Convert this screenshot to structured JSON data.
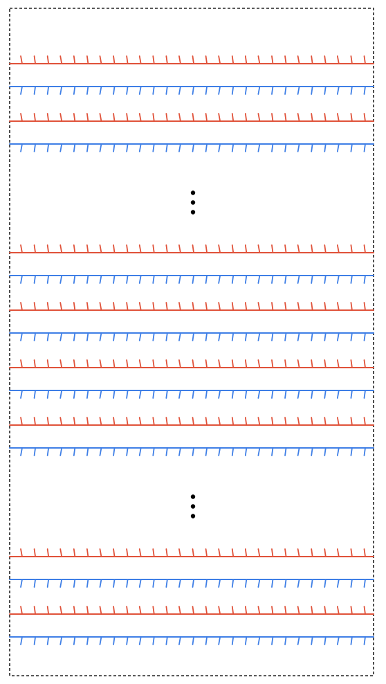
{
  "diagram": {
    "border_style": "dashed",
    "colors": {
      "red_line": "#e0523a",
      "blue_line": "#3f7fe6",
      "border": "#222222",
      "dots": "#000000"
    },
    "groups": [
      {
        "pairs": 2
      },
      {
        "ellipsis": true
      },
      {
        "pairs": 4
      },
      {
        "ellipsis": true
      },
      {
        "pairs": 2
      }
    ],
    "red_tick_direction": "up",
    "blue_tick_direction": "down",
    "ticks_per_line": 27
  }
}
